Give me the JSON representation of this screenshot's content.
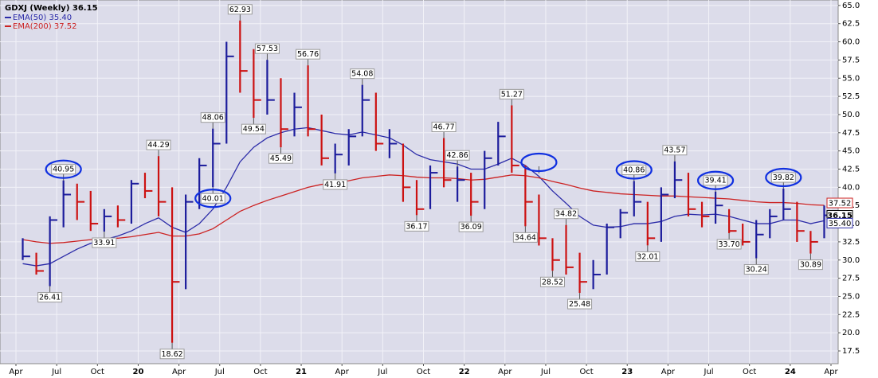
{
  "chart_data": {
    "type": "ohlc",
    "background": "#dcdcea",
    "grid": true,
    "categories": [
      "2019-04",
      "2019-05",
      "2019-06",
      "2019-07",
      "2019-08",
      "2019-09",
      "2019-10",
      "2019-11",
      "2019-12",
      "2020-01",
      "2020-02",
      "2020-03",
      "2020-04",
      "2020-05",
      "2020-06",
      "2020-07",
      "2020-08",
      "2020-09",
      "2020-10",
      "2020-11",
      "2020-12",
      "2021-01",
      "2021-02",
      "2021-03",
      "2021-04",
      "2021-05",
      "2021-06",
      "2021-07",
      "2021-08",
      "2021-09",
      "2021-10",
      "2021-11",
      "2021-12",
      "2022-01",
      "2022-02",
      "2022-03",
      "2022-04",
      "2022-05",
      "2022-06",
      "2022-07",
      "2022-08",
      "2022-09",
      "2022-10",
      "2022-11",
      "2022-12",
      "2023-01",
      "2023-02",
      "2023-03",
      "2023-04",
      "2023-05",
      "2023-06",
      "2023-07",
      "2023-08",
      "2023-09",
      "2023-10",
      "2023-11",
      "2023-12",
      "2024-01",
      "2024-02",
      "2024-03"
    ],
    "price": {
      "name": "GDXJ (Weekly)",
      "last_label": "36.15",
      "up_color": "#1c1c9c",
      "down_color": "#cc1111",
      "high": [
        33,
        31,
        36,
        40.95,
        40.5,
        39.5,
        37,
        37.5,
        41,
        42,
        44.29,
        40,
        39,
        44,
        48.06,
        60,
        62.93,
        59,
        57.53,
        55,
        53,
        56.76,
        50,
        46,
        48,
        54.08,
        53,
        48,
        46,
        41,
        43,
        46.77,
        42.86,
        42,
        45,
        49,
        51.27,
        43,
        39,
        33,
        34.82,
        31,
        30,
        35,
        37,
        40.86,
        38,
        40,
        43.57,
        42,
        38,
        39.41,
        37,
        35,
        35.5,
        37,
        39.82,
        38,
        34,
        37.5
      ],
      "low": [
        30,
        28,
        26.41,
        34.5,
        35.5,
        34,
        33.91,
        34.5,
        35,
        38.5,
        36,
        18.62,
        26,
        37,
        40.01,
        46,
        53,
        49.54,
        50,
        45.49,
        47,
        47,
        43,
        41.91,
        43,
        47,
        45,
        44,
        38,
        36.17,
        37,
        40,
        38,
        36.09,
        37,
        43,
        42,
        34.64,
        32,
        28.52,
        28,
        25.48,
        26,
        28,
        33,
        36,
        32.01,
        32.5,
        38.5,
        36,
        34.5,
        35,
        33.7,
        32,
        30.24,
        33,
        35.5,
        32.5,
        30.89,
        33
      ],
      "close": [
        30.5,
        28.5,
        35.5,
        39,
        38,
        35,
        36,
        35.5,
        40.5,
        39.5,
        38,
        27,
        38,
        43,
        46,
        58,
        56,
        52,
        52,
        48,
        51,
        48,
        44,
        44.5,
        47,
        52,
        46,
        46,
        40,
        37,
        42,
        41,
        41,
        38,
        44,
        47,
        43,
        38,
        33,
        30,
        29,
        27,
        28,
        34.5,
        36.5,
        38,
        33,
        39,
        41,
        37,
        36,
        37.5,
        34,
        32.5,
        33.5,
        36,
        37,
        34,
        32.5,
        36.15
      ]
    },
    "series": [
      {
        "name": "EMA(50)",
        "last_label": "35.40",
        "color": "#2b2ba8",
        "values": [
          29.5,
          29.2,
          29.5,
          30.5,
          31.5,
          32.3,
          32.8,
          33.3,
          34,
          35,
          35.8,
          34.5,
          33.8,
          35,
          37,
          40,
          43.5,
          45.5,
          46.8,
          47.5,
          48,
          48.2,
          47.8,
          47.4,
          47.2,
          47.6,
          47.2,
          46.8,
          45.8,
          44.5,
          43.8,
          43.5,
          43.2,
          42.5,
          42.5,
          43.2,
          44,
          43,
          41.5,
          39.5,
          37.8,
          36,
          34.8,
          34.5,
          34.6,
          35,
          35,
          35.3,
          36,
          36.3,
          36.2,
          36.3,
          36,
          35.5,
          35,
          35,
          35.5,
          35.5,
          35,
          35.4
        ]
      },
      {
        "name": "EMA(200)",
        "last_label": "37.52",
        "color": "#cc2222",
        "values": [
          32.8,
          32.5,
          32.3,
          32.4,
          32.6,
          32.8,
          33,
          33,
          33.2,
          33.5,
          33.8,
          33.3,
          33.3,
          33.6,
          34.3,
          35.5,
          36.7,
          37.5,
          38.2,
          38.8,
          39.4,
          40,
          40.4,
          40.6,
          40.9,
          41.3,
          41.5,
          41.7,
          41.6,
          41.4,
          41.3,
          41.3,
          41.2,
          41,
          41.1,
          41.4,
          41.7,
          41.6,
          41.3,
          40.8,
          40.4,
          39.9,
          39.5,
          39.3,
          39.1,
          39,
          38.9,
          38.8,
          38.8,
          38.7,
          38.6,
          38.5,
          38.4,
          38.2,
          38,
          37.9,
          37.9,
          37.8,
          37.6,
          37.52
        ]
      }
    ],
    "ylim": [
      15.75,
      65.75
    ],
    "yticks": [
      17.5,
      {
        "value": 20,
        "label": "20.0"
      },
      22.5,
      {
        "value": 25,
        "label": "25.0"
      },
      27.5,
      {
        "value": 30,
        "label": "30.0"
      },
      32.5,
      {
        "value": 35,
        "label": "35.0"
      },
      37.5,
      {
        "value": 40,
        "label": "40.0"
      },
      42.5,
      {
        "value": 45,
        "label": "45.0"
      },
      47.5,
      {
        "value": 50,
        "label": "50.0"
      },
      52.5,
      {
        "value": 55,
        "label": "55.0"
      },
      57.5,
      {
        "value": 60,
        "label": "60.0"
      },
      62.5,
      {
        "value": 65,
        "label": "65.0"
      }
    ],
    "xticks": [
      {
        "value": "2019-04",
        "label": "Apr"
      },
      {
        "value": "2019-07",
        "label": "Jul"
      },
      {
        "value": "2019-10",
        "label": "Oct"
      },
      {
        "value": "2020-01",
        "label": "20"
      },
      {
        "value": "2020-04",
        "label": "Apr"
      },
      {
        "value": "2020-07",
        "label": "Jul"
      },
      {
        "value": "2020-10",
        "label": "Oct"
      },
      {
        "value": "2021-01",
        "label": "21"
      },
      {
        "value": "2021-04",
        "label": "Apr"
      },
      {
        "value": "2021-07",
        "label": "Jul"
      },
      {
        "value": "2021-10",
        "label": "Oct"
      },
      {
        "value": "2022-01",
        "label": "22"
      },
      {
        "value": "2022-04",
        "label": "Apr"
      },
      {
        "value": "2022-07",
        "label": "Jul"
      },
      {
        "value": "2022-10",
        "label": "Oct"
      },
      {
        "value": "2023-01",
        "label": "23"
      },
      {
        "value": "2023-04",
        "label": "Apr"
      },
      {
        "value": "2023-07",
        "label": "Jul"
      },
      {
        "value": "2023-10",
        "label": "Oct"
      },
      {
        "value": "2024-01",
        "label": "24"
      },
      {
        "value": "2024-04",
        "label": "Apr"
      }
    ],
    "annotations": [
      {
        "label": "26.41",
        "value": 26.41,
        "x": "2019-06",
        "side": "below"
      },
      {
        "label": "40.95",
        "value": 40.95,
        "x": "2019-07",
        "side": "above",
        "circled": true
      },
      {
        "label": "33.91",
        "value": 33.91,
        "x": "2019-10",
        "side": "below"
      },
      {
        "label": "44.29",
        "value": 44.29,
        "x": "2020-02",
        "side": "above"
      },
      {
        "label": "18.62",
        "value": 18.62,
        "x": "2020-03",
        "side": "below"
      },
      {
        "label": "40.01",
        "value": 40.01,
        "x": "2020-06",
        "side": "below",
        "circled": true
      },
      {
        "label": "48.06",
        "value": 48.06,
        "x": "2020-06",
        "side": "above"
      },
      {
        "label": "62.93",
        "value": 62.93,
        "x": "2020-08",
        "side": "above"
      },
      {
        "label": "49.54",
        "value": 49.54,
        "x": "2020-09",
        "side": "below"
      },
      {
        "label": "57.53",
        "value": 57.53,
        "x": "2020-10",
        "side": "above"
      },
      {
        "label": "45.49",
        "value": 45.49,
        "x": "2020-11",
        "side": "below"
      },
      {
        "label": "56.76",
        "value": 56.76,
        "x": "2021-01",
        "side": "above"
      },
      {
        "label": "41.91",
        "value": 41.91,
        "x": "2021-03",
        "side": "below"
      },
      {
        "label": "54.08",
        "value": 54.08,
        "x": "2021-05",
        "side": "above"
      },
      {
        "label": "36.17",
        "value": 36.17,
        "x": "2021-09",
        "side": "below"
      },
      {
        "label": "46.77",
        "value": 46.77,
        "x": "2021-11",
        "side": "above"
      },
      {
        "label": "42.86",
        "value": 42.86,
        "x": "2021-12",
        "side": "above"
      },
      {
        "label": "36.09",
        "value": 36.09,
        "x": "2022-01",
        "side": "below"
      },
      {
        "label": "51.27",
        "value": 51.27,
        "x": "2022-04",
        "side": "above"
      },
      {
        "label": "34.64",
        "value": 34.64,
        "x": "2022-05",
        "side": "below"
      },
      {
        "value": 41.9,
        "x": "2022-06",
        "side": "above",
        "circled": true
      },
      {
        "label": "28.52",
        "value": 28.52,
        "x": "2022-07",
        "side": "below"
      },
      {
        "label": "34.82",
        "value": 34.82,
        "x": "2022-08",
        "side": "above"
      },
      {
        "label": "25.48",
        "value": 25.48,
        "x": "2022-09",
        "side": "below"
      },
      {
        "label": "40.86",
        "value": 40.86,
        "x": "2023-01",
        "side": "above",
        "circled": true
      },
      {
        "label": "32.01",
        "value": 32.01,
        "x": "2023-02",
        "side": "below"
      },
      {
        "label": "43.57",
        "value": 43.57,
        "x": "2023-04",
        "side": "above"
      },
      {
        "label": "39.41",
        "value": 39.41,
        "x": "2023-07",
        "side": "above",
        "circled": true
      },
      {
        "label": "33.70",
        "value": 33.7,
        "x": "2023-08",
        "side": "below"
      },
      {
        "label": "30.24",
        "value": 30.24,
        "x": "2023-10",
        "side": "below"
      },
      {
        "label": "39.82",
        "value": 39.82,
        "x": "2023-12",
        "side": "above",
        "circled": true
      },
      {
        "label": "30.89",
        "value": 30.89,
        "x": "2024-02",
        "side": "below"
      }
    ]
  }
}
